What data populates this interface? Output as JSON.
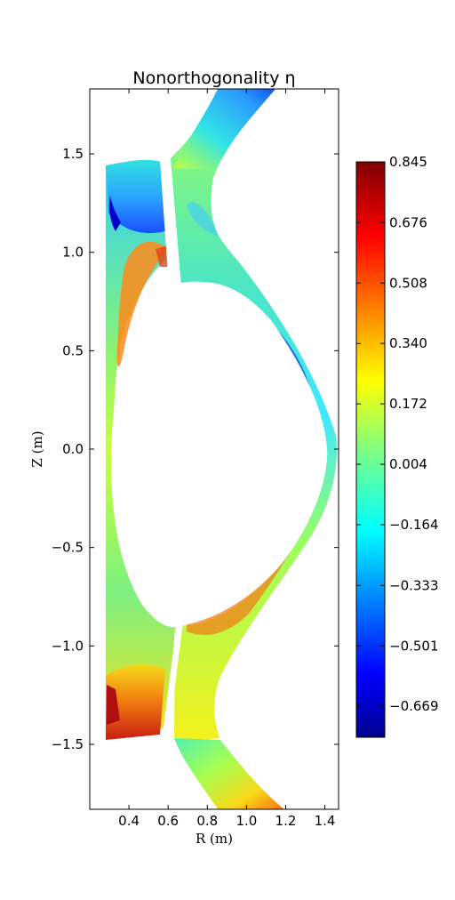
{
  "chart_data": {
    "type": "heatmap",
    "title": "Nonorthogonality η",
    "xlabel": "R (m)",
    "ylabel": "Z (m)",
    "xlim": [
      0.2,
      1.47
    ],
    "ylim": [
      -1.83,
      1.83
    ],
    "xticks": [
      {
        "value": 0.4,
        "label": "0.4"
      },
      {
        "value": 0.6,
        "label": "0.6"
      },
      {
        "value": 0.8,
        "label": "0.8"
      },
      {
        "value": 1.0,
        "label": "1.0"
      },
      {
        "value": 1.2,
        "label": "1.2"
      },
      {
        "value": 1.4,
        "label": "1.4"
      }
    ],
    "yticks": [
      {
        "value": 1.5,
        "label": "1.5"
      },
      {
        "value": 1.0,
        "label": "1.0"
      },
      {
        "value": 0.5,
        "label": "0.5"
      },
      {
        "value": 0.0,
        "label": "0.0"
      },
      {
        "value": -0.5,
        "label": "−0.5"
      },
      {
        "value": -1.0,
        "label": "−1.0"
      },
      {
        "value": -1.5,
        "label": "−1.5"
      }
    ],
    "colorbar": {
      "colormap": "jet",
      "vmin": -0.755,
      "vmax": 0.845,
      "ticks": [
        {
          "value": 0.845,
          "label": "0.845"
        },
        {
          "value": 0.676,
          "label": "0.676"
        },
        {
          "value": 0.508,
          "label": "0.508"
        },
        {
          "value": 0.34,
          "label": "0.340"
        },
        {
          "value": 0.172,
          "label": "0.172"
        },
        {
          "value": 0.004,
          "label": "0.004"
        },
        {
          "value": -0.164,
          "label": "−0.164"
        },
        {
          "value": -0.333,
          "label": "−0.333"
        },
        {
          "value": -0.501,
          "label": "−0.501"
        },
        {
          "value": -0.669,
          "label": "−0.669"
        }
      ]
    },
    "grid": false,
    "legend": "none"
  }
}
